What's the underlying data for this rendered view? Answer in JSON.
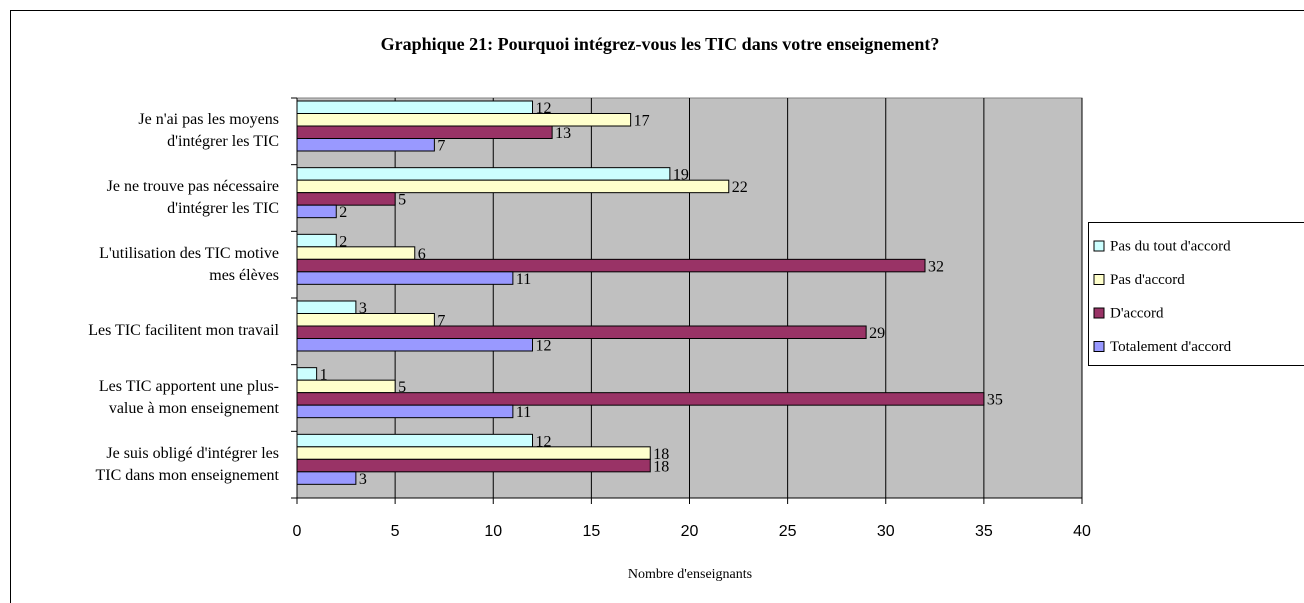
{
  "chart_data": {
    "type": "hbar",
    "title": "Graphique 21: Pourquoi intégrez-vous les TIC dans votre enseignement?",
    "xlabel": "Nombre d'enseignants",
    "categories": [
      "Je n'ai pas les moyens\nd'intégrer les TIC",
      "Je ne trouve pas nécessaire\nd'intégrer les TIC",
      "L'utilisation des TIC motive\nmes élèves",
      "Les TIC facilitent mon travail",
      "Les TIC apportent une plus-\nvalue à mon enseignement",
      "Je suis obligé d'intégrer les\nTIC dans mon enseignement"
    ],
    "series": [
      {
        "name": "Pas du tout d'accord",
        "color": "#ccffff",
        "values": [
          12,
          19,
          2,
          3,
          1,
          12
        ]
      },
      {
        "name": "Pas d'accord",
        "color": "#ffffcc",
        "values": [
          17,
          22,
          6,
          7,
          5,
          18
        ]
      },
      {
        "name": "D'accord",
        "color": "#993366",
        "values": [
          13,
          5,
          32,
          29,
          35,
          18
        ]
      },
      {
        "name": "Totalement d'accord",
        "color": "#9999ff",
        "values": [
          7,
          2,
          11,
          12,
          11,
          3
        ]
      }
    ],
    "xlim": [
      0,
      40
    ],
    "xticks": [
      0,
      5,
      10,
      15,
      20,
      25,
      30,
      35,
      40
    ],
    "grid": true,
    "legend": "right"
  }
}
